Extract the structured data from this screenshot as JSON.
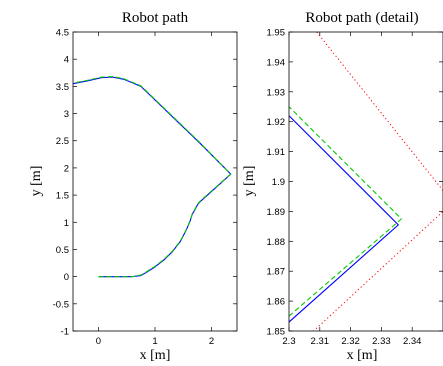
{
  "colors": {
    "actual": "#0000ff",
    "reference": "#00cc00",
    "boundary": "#ff0000",
    "axes": "#000000"
  },
  "chart_data": [
    {
      "type": "line",
      "title": "Robot path",
      "xlabel": "x [m]",
      "ylabel": "y [m]",
      "xlim": [
        -0.45,
        2.45
      ],
      "ylim": [
        -1,
        4.5
      ],
      "xticks": [
        0,
        1,
        2
      ],
      "yticks": [
        -1,
        -0.5,
        0,
        0.5,
        1,
        1.5,
        2,
        2.5,
        3,
        3.5,
        4,
        4.5
      ],
      "grid": false,
      "series": [
        {
          "style": "solid",
          "color": "#0000ff",
          "x": [
            0,
            0.2,
            0.4,
            0.6,
            0.75,
            0.85,
            1.0,
            1.15,
            1.3,
            1.45,
            1.55,
            1.62,
            1.66,
            1.7,
            1.74,
            1.78,
            1.82,
            2.34,
            1.8,
            1.45,
            1.1,
            0.75,
            0.45,
            0.25,
            0.05,
            -0.2,
            -0.45
          ],
          "y": [
            0,
            0,
            0,
            0,
            0.02,
            0.08,
            0.18,
            0.3,
            0.45,
            0.65,
            0.85,
            1.02,
            1.15,
            1.22,
            1.3,
            1.36,
            1.4,
            1.886,
            2.45,
            2.8,
            3.15,
            3.5,
            3.63,
            3.67,
            3.66,
            3.6,
            3.55
          ]
        },
        {
          "style": "dashed",
          "color": "#00cc00",
          "x": [
            0,
            0.2,
            0.4,
            0.6,
            0.75,
            0.85,
            1.0,
            1.15,
            1.3,
            1.45,
            1.55,
            1.62,
            1.66,
            1.7,
            1.74,
            1.78,
            1.82,
            2.335,
            1.8,
            1.45,
            1.1,
            0.75,
            0.45,
            0.25,
            0.05,
            -0.2,
            -0.45
          ],
          "y": [
            0,
            0,
            0,
            0,
            0.03,
            0.09,
            0.19,
            0.31,
            0.46,
            0.66,
            0.86,
            1.03,
            1.16,
            1.23,
            1.31,
            1.37,
            1.41,
            1.886,
            2.46,
            2.81,
            3.16,
            3.51,
            3.64,
            3.68,
            3.67,
            3.61,
            3.56
          ]
        }
      ]
    },
    {
      "type": "line",
      "title": "Robot path (detail)",
      "xlabel": "x [m]",
      "ylabel": "y [m]",
      "xlim": [
        2.3,
        2.35
      ],
      "ylim": [
        1.85,
        1.95
      ],
      "xticks": [
        2.3,
        2.31,
        2.32,
        2.33,
        2.34
      ],
      "yticks": [
        1.85,
        1.86,
        1.87,
        1.88,
        1.89,
        1.9,
        1.91,
        1.92,
        1.93,
        1.94,
        1.95
      ],
      "grid": false,
      "series": [
        {
          "style": "solid",
          "color": "#0000ff",
          "x": [
            2.3,
            2.3355,
            2.3
          ],
          "y": [
            1.853,
            1.8855,
            1.922
          ]
        },
        {
          "style": "dashed",
          "color": "#00cc00",
          "x": [
            2.3,
            2.3365,
            2.3
          ],
          "y": [
            1.855,
            1.8875,
            1.925
          ]
        },
        {
          "style": "dotted",
          "color": "#ff0000",
          "x": [
            2.309,
            2.35,
            2.35,
            2.308
          ],
          "y": [
            1.95,
            1.897,
            1.89,
            1.85
          ]
        }
      ]
    }
  ]
}
